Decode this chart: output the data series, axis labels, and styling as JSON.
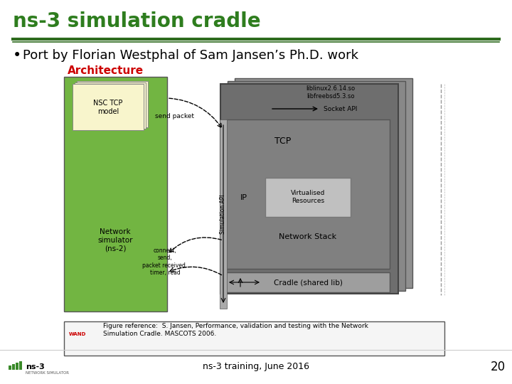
{
  "title": "ns-3 simulation cradle",
  "bullet": "Port by Florian Westphal of Sam Jansen’s Ph.D. work",
  "title_color": "#2e7d1e",
  "title_font_size": 20,
  "bullet_font_size": 13,
  "separator_color": "#2e6b1e",
  "bg_color": "#ffffff",
  "arch_label": "Architecture",
  "arch_label_color": "#cc0000",
  "footer_text": "ns-3 training, June 2016",
  "page_number": "20",
  "figure_ref": "Figure reference:  S. Jansen, Performance, validation and testing with the Network\nSimulation Cradle. MASCOTS 2006.",
  "green_box_color": "#72b542",
  "light_yellow_color": "#f8f5cc",
  "gray_back1": "#8a8a8a",
  "gray_back2": "#9a9a9a",
  "gray_main": "#6e6e6e",
  "gray_inner": "#808080",
  "gray_cradle": "#9e9e9e",
  "gray_virt": "#c0c0c0",
  "nsc_tcp_label": "NSC TCP\nmodel",
  "net_sim_label": "Network\nsimulator\n(ns-2)",
  "liblinux_label": "liblinux2.6.14.so\nlibfreebsd5.3.so",
  "socket_api_label": "Socket API",
  "tcp_label": "TCP",
  "ip_label": "IP",
  "virt_res_label": "Virtualised\nResources",
  "net_stack_label": "Network Stack",
  "cradle_label": "Cradle (shared lib)",
  "sim_api_label": "Simulation API",
  "send_packet_label": "send packet",
  "connect_label": "connect,\nsend,\npacket received,\ntimer, read"
}
